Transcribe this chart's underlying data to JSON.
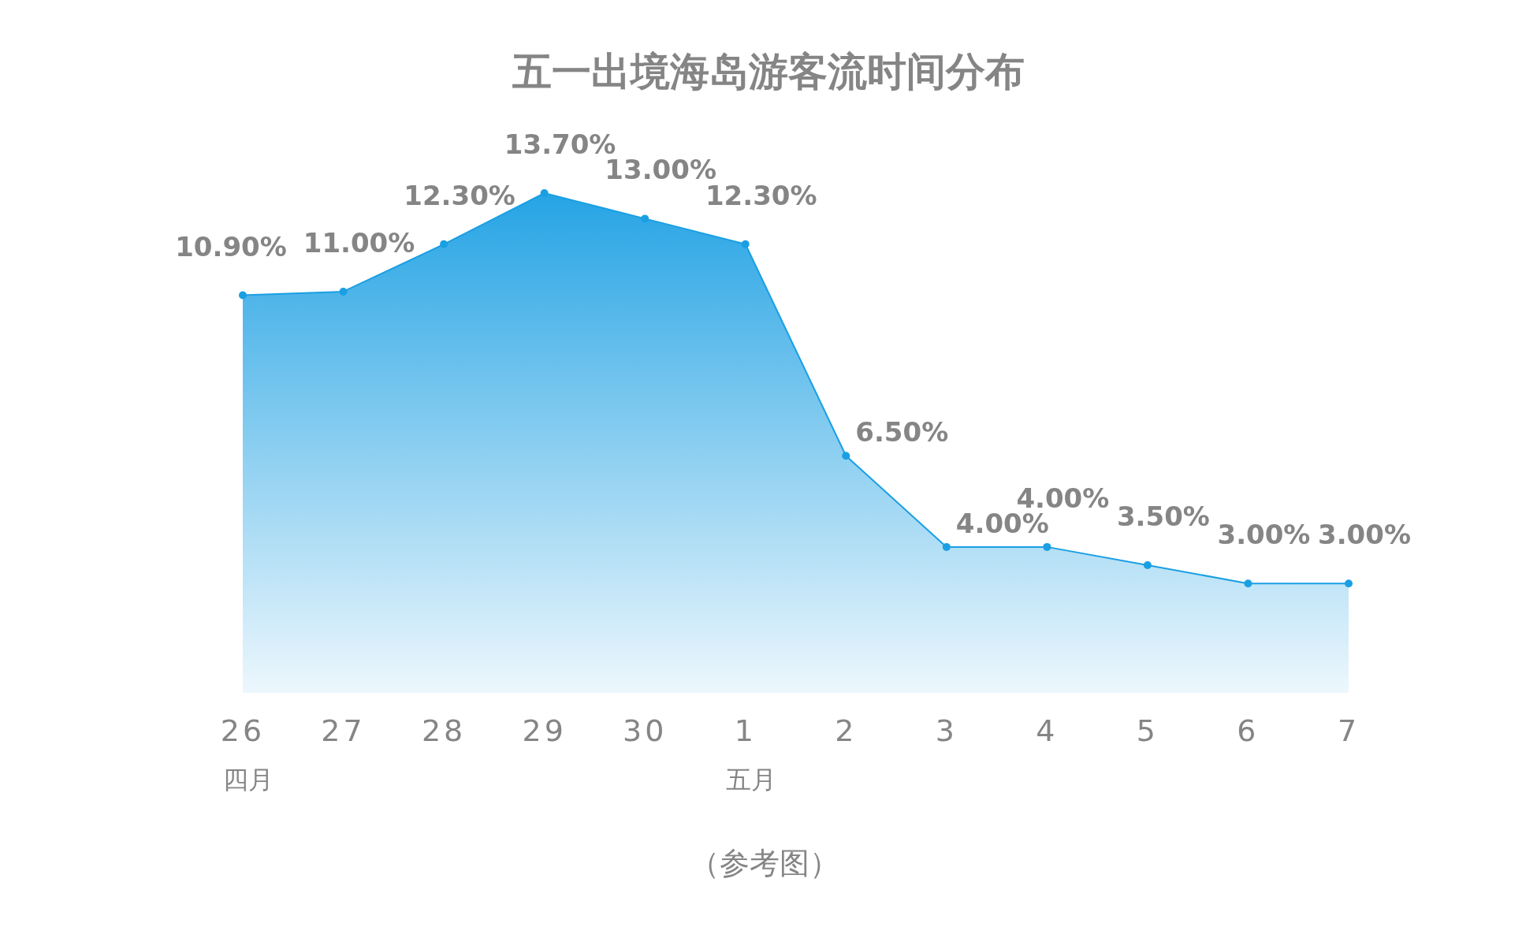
{
  "chart_data": {
    "type": "area",
    "title": "五一出境海岛游客流时间分布",
    "categories": [
      "26\n四月",
      "27",
      "28",
      "29",
      "30",
      "1\n五月",
      "2",
      "3",
      "4",
      "5",
      "6",
      "7"
    ],
    "series": [
      {
        "color": "#1a9fe3",
        "values": [
          10.9,
          11.0,
          12.3,
          13.7,
          13.0,
          12.3,
          6.5,
          4.0,
          4.0,
          3.5,
          3.0,
          3.0
        ],
        "value_labels": [
          "10.90%",
          "11.00%",
          "12.30%",
          "13.70%",
          "13.00%",
          "12.30%",
          "6.50%",
          "4.00%",
          "4.00%",
          "3.50%",
          "3.00%",
          "3.00%"
        ]
      }
    ],
    "marker": "circle",
    "annotations": [
      "（参考图）"
    ]
  }
}
